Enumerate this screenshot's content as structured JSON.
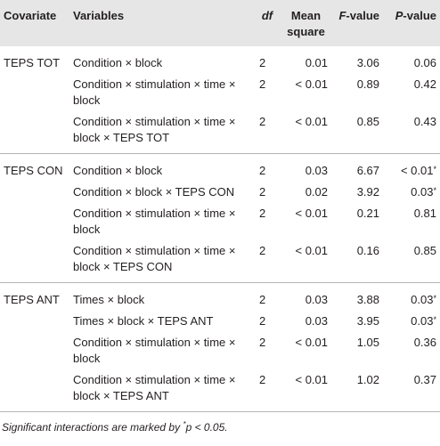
{
  "header": {
    "covariate": "Covariate",
    "variables": "Variables",
    "df": "df",
    "mean_square": "Mean square",
    "f_value": "F-value",
    "p_value": "P-value"
  },
  "groups": [
    {
      "covariate": "TEPS TOT",
      "rows": [
        {
          "variables": "Condition × block",
          "df": "2",
          "ms": "0.01",
          "f": "3.06",
          "p": "0.06",
          "sig": ""
        },
        {
          "variables": "Condition × stimulation × time × block",
          "df": "2",
          "ms": "< 0.01",
          "f": "0.89",
          "p": "0.42",
          "sig": ""
        },
        {
          "variables": "Condition × stimulation × time × block × TEPS TOT",
          "df": "2",
          "ms": "< 0.01",
          "f": "0.85",
          "p": "0.43",
          "sig": ""
        }
      ]
    },
    {
      "covariate": "TEPS CON",
      "rows": [
        {
          "variables": "Condition × block",
          "df": "2",
          "ms": "0.03",
          "f": "6.67",
          "p": "< 0.01",
          "sig": "*"
        },
        {
          "variables": "Condition × block × TEPS CON",
          "df": "2",
          "ms": "0.02",
          "f": "3.92",
          "p": "0.03",
          "sig": "*"
        },
        {
          "variables": "Condition × stimulation × time × block",
          "df": "2",
          "ms": "< 0.01",
          "f": "0.21",
          "p": "0.81",
          "sig": ""
        },
        {
          "variables": "Condition × stimulation × time × block × TEPS CON",
          "df": "2",
          "ms": "< 0.01",
          "f": "0.16",
          "p": "0.85",
          "sig": ""
        }
      ]
    },
    {
      "covariate": "TEPS ANT",
      "rows": [
        {
          "variables": "Times × block",
          "df": "2",
          "ms": "0.03",
          "f": "3.88",
          "p": "0.03",
          "sig": "*"
        },
        {
          "variables": "Times × block × TEPS ANT",
          "df": "2",
          "ms": "0.03",
          "f": "3.95",
          "p": "0.03",
          "sig": "*"
        },
        {
          "variables": "Condition × stimulation × time × block",
          "df": "2",
          "ms": "< 0.01",
          "f": "1.05",
          "p": "0.36",
          "sig": ""
        },
        {
          "variables": "Condition × stimulation × time × block × TEPS ANT",
          "df": "2",
          "ms": "< 0.01",
          "f": "1.02",
          "p": "0.37",
          "sig": ""
        }
      ]
    }
  ],
  "footnote": {
    "prefix": "Significant interactions are marked by ",
    "mark": "*",
    "suffix": "p < 0.05."
  }
}
